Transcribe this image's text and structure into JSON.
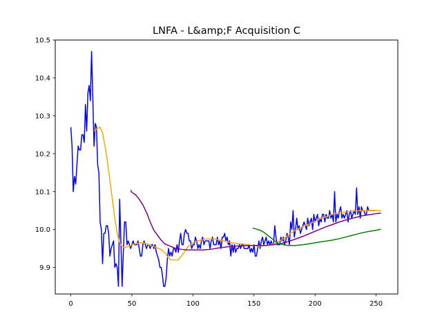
{
  "chart_data": {
    "type": "line",
    "title": "LNFA - L&amp;F Acquisition C",
    "xlabel": "",
    "ylabel": "",
    "xlim": [
      -12.75,
      267.75
    ],
    "ylim": [
      9.83,
      10.5
    ],
    "x_ticks": [
      0,
      50,
      100,
      150,
      200,
      250
    ],
    "y_ticks": [
      9.9,
      10.0,
      10.1,
      10.2,
      10.3,
      10.4,
      10.5
    ],
    "x_tick_labels": [
      "0",
      "50",
      "100",
      "150",
      "200",
      "250"
    ],
    "y_tick_labels": [
      "9.9",
      "10.0",
      "10.1",
      "10.2",
      "10.3",
      "10.4",
      "10.5"
    ],
    "grid": false,
    "legend": false,
    "series": [
      {
        "color": "#0000ff",
        "x_start": 0,
        "values": [
          10.27,
          10.22,
          10.1,
          10.14,
          10.12,
          10.17,
          10.22,
          10.21,
          10.21,
          10.25,
          10.25,
          10.23,
          10.33,
          10.26,
          10.36,
          10.38,
          10.34,
          10.47,
          10.35,
          10.22,
          10.28,
          10.27,
          10.17,
          10.15,
          10.02,
          10.0,
          9.91,
          9.99,
          9.99,
          10.01,
          10.01,
          9.99,
          9.93,
          9.95,
          9.96,
          9.97,
          9.9,
          9.91,
          9.9,
          9.85,
          10.08,
          9.97,
          9.85,
          9.94,
          10.02,
          10.02,
          9.96,
          9.97,
          9.96,
          9.95,
          9.96,
          9.97,
          9.96,
          9.96,
          9.96,
          9.97,
          9.95,
          9.93,
          9.93,
          9.96,
          9.97,
          9.96,
          9.95,
          9.96,
          9.96,
          9.95,
          9.96,
          9.96,
          9.95,
          9.96,
          9.94,
          9.93,
          9.92,
          9.9,
          9.9,
          9.88,
          9.85,
          9.85,
          9.87,
          9.92,
          9.95,
          9.93,
          9.94,
          9.93,
          9.95,
          9.95,
          9.94,
          9.96,
          9.94,
          9.97,
          9.99,
          9.96,
          9.96,
          9.99,
          10.0,
          9.99,
          9.99,
          9.97,
          9.97,
          9.95,
          9.96,
          9.96,
          9.98,
          9.97,
          9.95,
          9.96,
          9.95,
          9.97,
          9.98,
          9.96,
          9.97,
          9.97,
          9.97,
          9.97,
          9.95,
          9.97,
          9.98,
          9.96,
          9.96,
          9.96,
          9.98,
          9.96,
          9.97,
          9.95,
          9.98,
          9.98,
          9.99,
          9.97,
          9.98,
          9.96,
          9.97,
          9.93,
          9.96,
          9.94,
          9.96,
          9.94,
          9.95,
          9.95,
          9.96,
          9.95,
          9.96,
          9.96,
          9.95,
          9.95,
          9.95,
          9.95,
          9.96,
          9.94,
          9.95,
          9.94,
          9.96,
          9.93,
          9.93,
          9.95,
          9.97,
          9.95,
          9.97,
          9.98,
          9.96,
          9.97,
          9.98,
          9.96,
          9.97,
          9.96,
          9.97,
          9.96,
          9.96,
          10.01,
          9.98,
          9.96,
          9.96,
          9.96,
          9.98,
          9.97,
          9.98,
          9.96,
          9.97,
          9.99,
          9.98,
          9.96,
          10.02,
          10.0,
          10.05,
          9.98,
          10.0,
          10.03,
          10.0,
          10.01,
          9.99,
          10.0,
          10.01,
          10.02,
          10.01,
          10.0,
          10.03,
          10.01,
          10.02,
          10.03,
          10.0,
          10.04,
          10.02,
          10.03,
          10.04,
          10.01,
          10.03,
          10.02,
          10.04,
          10.04,
          10.02,
          10.04,
          10.03,
          10.03,
          10.05,
          10.03,
          10.04,
          10.02,
          10.1,
          10.02,
          10.04,
          10.03,
          10.05,
          10.06,
          10.03,
          10.04,
          10.03,
          10.04,
          10.05,
          10.02,
          10.04,
          10.05,
          10.03,
          10.04,
          10.05,
          10.04,
          10.11,
          10.04,
          10.06,
          10.03,
          10.06,
          10.05,
          10.05,
          10.04,
          10.04,
          10.06,
          10.05,
          10.05,
          10.05,
          10.05,
          10.05,
          10.05
        ]
      },
      {
        "color": "#ffa500",
        "points": [
          [
            19,
            10.26
          ],
          [
            21,
            10.265
          ],
          [
            24,
            10.27
          ],
          [
            26,
            10.255
          ],
          [
            28,
            10.22
          ],
          [
            30,
            10.18
          ],
          [
            32,
            10.13
          ],
          [
            34,
            10.08
          ],
          [
            36,
            10.03
          ],
          [
            38,
            9.99
          ],
          [
            40,
            9.965
          ],
          [
            42,
            9.955
          ],
          [
            44,
            9.952
          ],
          [
            46,
            9.955
          ],
          [
            48,
            9.955
          ],
          [
            50,
            9.96
          ],
          [
            53,
            9.962
          ],
          [
            56,
            9.965
          ],
          [
            60,
            9.965
          ],
          [
            64,
            9.96
          ],
          [
            68,
            9.955
          ],
          [
            72,
            9.95
          ],
          [
            75,
            9.945
          ],
          [
            78,
            9.935
          ],
          [
            80,
            9.925
          ],
          [
            82,
            9.92
          ],
          [
            84,
            9.92
          ],
          [
            86,
            9.92
          ],
          [
            88,
            9.92
          ],
          [
            90,
            9.928
          ],
          [
            93,
            9.94
          ],
          [
            96,
            9.955
          ],
          [
            100,
            9.965
          ],
          [
            104,
            9.97
          ],
          [
            110,
            9.975
          ],
          [
            118,
            9.975
          ],
          [
            125,
            9.97
          ],
          [
            132,
            9.965
          ],
          [
            140,
            9.962
          ],
          [
            148,
            9.958
          ],
          [
            155,
            9.956
          ],
          [
            160,
            9.958
          ],
          [
            165,
            9.96
          ],
          [
            170,
            9.968
          ],
          [
            175,
            9.978
          ],
          [
            180,
            9.99
          ],
          [
            186,
            10.002
          ],
          [
            192,
            10.01
          ],
          [
            198,
            10.018
          ],
          [
            204,
            10.028
          ],
          [
            210,
            10.035
          ],
          [
            216,
            10.042
          ],
          [
            222,
            10.045
          ],
          [
            230,
            10.048
          ],
          [
            236,
            10.05
          ],
          [
            242,
            10.05
          ],
          [
            248,
            10.05
          ],
          [
            254,
            10.05
          ]
        ]
      },
      {
        "color": "#800080",
        "points": [
          [
            49,
            10.104
          ],
          [
            50,
            10.098
          ],
          [
            53,
            10.092
          ],
          [
            56,
            10.08
          ],
          [
            59,
            10.065
          ],
          [
            62,
            10.045
          ],
          [
            65,
            10.02
          ],
          [
            68,
            9.998
          ],
          [
            71,
            9.985
          ],
          [
            74,
            9.972
          ],
          [
            77,
            9.962
          ],
          [
            80,
            9.958
          ],
          [
            83,
            9.954
          ],
          [
            86,
            9.95
          ],
          [
            90,
            9.948
          ],
          [
            95,
            9.946
          ],
          [
            100,
            9.946
          ],
          [
            108,
            9.946
          ],
          [
            115,
            9.948
          ],
          [
            122,
            9.952
          ],
          [
            130,
            9.955
          ],
          [
            138,
            9.957
          ],
          [
            146,
            9.958
          ],
          [
            154,
            9.958
          ],
          [
            160,
            9.958
          ],
          [
            166,
            9.96
          ],
          [
            172,
            9.963
          ],
          [
            178,
            9.968
          ],
          [
            184,
            9.975
          ],
          [
            190,
            9.982
          ],
          [
            196,
            9.99
          ],
          [
            202,
            9.998
          ],
          [
            208,
            10.006
          ],
          [
            214,
            10.013
          ],
          [
            220,
            10.02
          ],
          [
            226,
            10.026
          ],
          [
            232,
            10.031
          ],
          [
            238,
            10.036
          ],
          [
            244,
            10.039
          ],
          [
            250,
            10.042
          ],
          [
            254,
            10.043
          ]
        ]
      },
      {
        "color": "#008000",
        "points": [
          [
            149,
            10.004
          ],
          [
            152,
            10.001
          ],
          [
            155,
            9.998
          ],
          [
            158,
            9.993
          ],
          [
            161,
            9.985
          ],
          [
            164,
            9.978
          ],
          [
            167,
            9.97
          ],
          [
            170,
            9.963
          ],
          [
            174,
            9.96
          ],
          [
            178,
            9.958
          ],
          [
            184,
            9.958
          ],
          [
            190,
            9.96
          ],
          [
            196,
            9.963
          ],
          [
            202,
            9.966
          ],
          [
            208,
            9.969
          ],
          [
            214,
            9.972
          ],
          [
            220,
            9.976
          ],
          [
            226,
            9.981
          ],
          [
            232,
            9.986
          ],
          [
            238,
            9.991
          ],
          [
            244,
            9.995
          ],
          [
            250,
            9.998
          ],
          [
            254,
            10.001
          ]
        ]
      }
    ]
  }
}
